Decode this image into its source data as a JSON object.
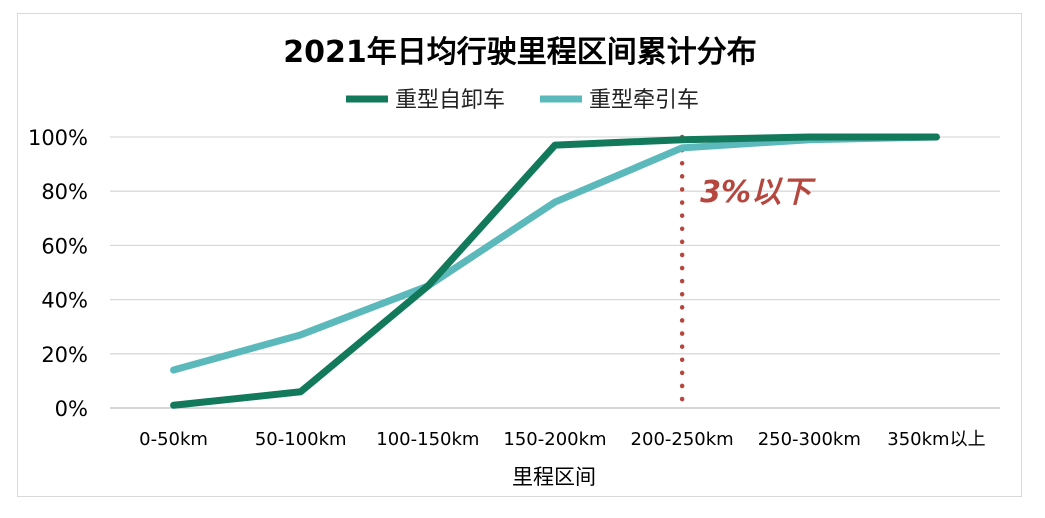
{
  "chart_data": {
    "type": "line",
    "title": "2021年日均行驶里程区间累计分布",
    "xlabel": "里程区间",
    "ylabel": "",
    "categories": [
      "0-50km",
      "50-100km",
      "100-150km",
      "150-200km",
      "200-250km",
      "250-300km",
      "350km以上"
    ],
    "ylim": [
      0,
      100
    ],
    "yticks": [
      "0%",
      "20%",
      "40%",
      "60%",
      "80%",
      "100%"
    ],
    "grid": true,
    "legend_position": "top-center",
    "series": [
      {
        "name": "重型自卸车",
        "color": "#13795b",
        "values": [
          1,
          6,
          45,
          97,
          99,
          100,
          100
        ]
      },
      {
        "name": "重型牵引车",
        "color": "#5bb8bb",
        "values": [
          14,
          27,
          45,
          76,
          96,
          99,
          100
        ]
      }
    ],
    "annotation": {
      "text": "3%以下",
      "category": "200-250km",
      "color": "#b5473f"
    }
  }
}
